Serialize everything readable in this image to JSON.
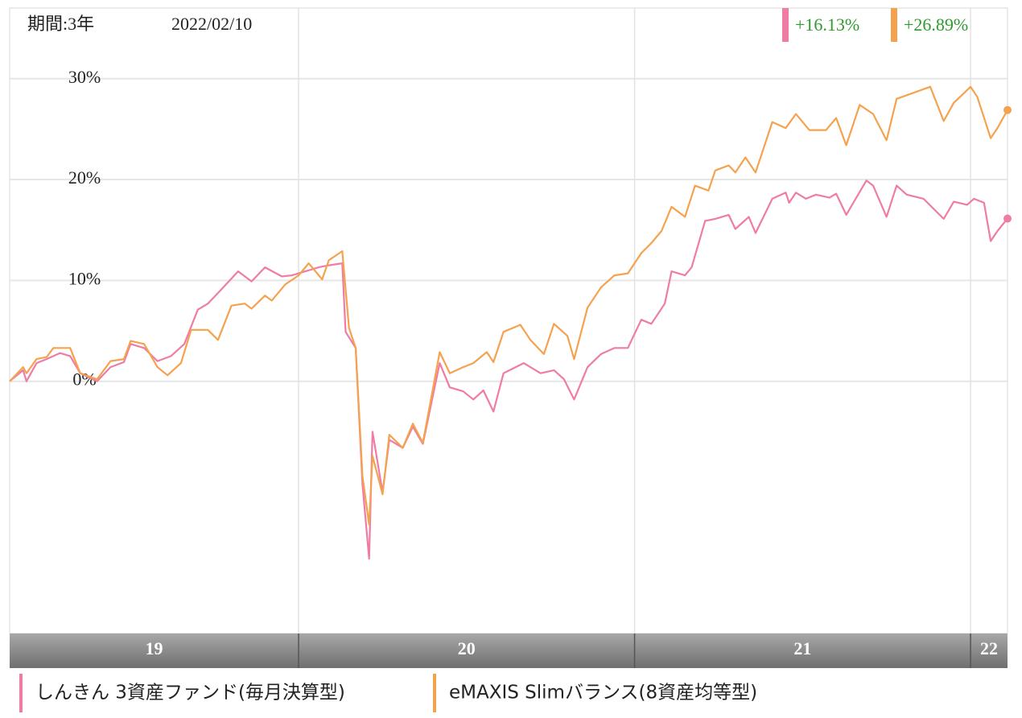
{
  "chart_data": {
    "type": "line",
    "period_label": "期間:3年",
    "date": "2022/02/10",
    "xlim": [
      2019.14,
      2022.11
    ],
    "xticks": [
      {
        "value": 2019,
        "label": "19"
      },
      {
        "value": 2020,
        "label": "20"
      },
      {
        "value": 2021,
        "label": "21"
      },
      {
        "value": 2022,
        "label": "22"
      }
    ],
    "ylim": [
      -25,
      37
    ],
    "yticks": [
      {
        "value": 0,
        "label": "0%"
      },
      {
        "value": 10,
        "label": "10%"
      },
      {
        "value": 20,
        "label": "20%"
      },
      {
        "value": 30,
        "label": "30%"
      }
    ],
    "grid": true,
    "series": [
      {
        "name": "しんきん 3資産ファンド(毎月決算型)",
        "color": "#ef7ca5",
        "end_label": "+16.13%",
        "x": [
          2019.14,
          2019.18,
          2019.19,
          2019.22,
          2019.25,
          2019.29,
          2019.32,
          2019.35,
          2019.4,
          2019.44,
          2019.48,
          2019.5,
          2019.54,
          2019.58,
          2019.62,
          2019.66,
          2019.7,
          2019.73,
          2019.77,
          2019.82,
          2019.86,
          2019.9,
          2019.95,
          2019.98,
          2020.02,
          2020.06,
          2020.09,
          2020.13,
          2020.14,
          2020.17,
          2020.19,
          2020.21,
          2020.22,
          2020.25,
          2020.27,
          2020.31,
          2020.34,
          2020.37,
          2020.42,
          2020.45,
          2020.49,
          2020.52,
          2020.55,
          2020.58,
          2020.61,
          2020.67,
          2020.72,
          2020.76,
          2020.79,
          2020.82,
          2020.86,
          2020.9,
          2020.94,
          2020.98,
          2021.02,
          2021.05,
          2021.09,
          2021.11,
          2021.15,
          2021.17,
          2021.21,
          2021.24,
          2021.28,
          2021.3,
          2021.34,
          2021.36,
          2021.41,
          2021.45,
          2021.46,
          2021.48,
          2021.51,
          2021.54,
          2021.58,
          2021.6,
          2021.63,
          2021.69,
          2021.71,
          2021.75,
          2021.78,
          2021.81,
          2021.86,
          2021.92,
          2021.95,
          2021.99,
          2022.01,
          2022.04,
          2022.06,
          2022.08,
          2022.11
        ],
        "values": [
          0,
          1.1,
          0,
          1.8,
          2.2,
          2.8,
          2.5,
          0.8,
          0,
          1.4,
          1.9,
          3.7,
          3.3,
          2.0,
          2.5,
          3.7,
          7.1,
          7.7,
          9.1,
          10.9,
          9.9,
          11.3,
          10.4,
          10.5,
          10.9,
          11.3,
          11.5,
          11.7,
          4.9,
          3.3,
          -10.2,
          -17.6,
          -5.0,
          -11.0,
          -5.8,
          -6.6,
          -4.5,
          -6.2,
          1.8,
          -0.6,
          -1.0,
          -1.8,
          -0.9,
          -3.0,
          0.8,
          1.8,
          0.8,
          1.1,
          0.2,
          -1.8,
          1.4,
          2.7,
          3.3,
          3.3,
          6.1,
          5.7,
          7.7,
          10.9,
          10.5,
          11.3,
          15.9,
          16.1,
          16.5,
          15.1,
          16.3,
          14.7,
          18.1,
          18.7,
          17.7,
          18.7,
          18.1,
          18.5,
          18.2,
          18.6,
          16.5,
          19.9,
          19.4,
          16.3,
          19.4,
          18.5,
          18.1,
          16.1,
          17.8,
          17.5,
          18.1,
          17.7,
          13.9,
          14.9,
          16.13
        ]
      },
      {
        "name": "eMAXIS Slimバランス(8資産均等型)",
        "color": "#f5a24f",
        "end_label": "+26.89%",
        "x": [
          2019.14,
          2019.18,
          2019.19,
          2019.22,
          2019.25,
          2019.27,
          2019.32,
          2019.35,
          2019.4,
          2019.44,
          2019.48,
          2019.5,
          2019.54,
          2019.58,
          2019.61,
          2019.65,
          2019.68,
          2019.73,
          2019.76,
          2019.8,
          2019.84,
          2019.86,
          2019.9,
          2019.92,
          2019.96,
          2020.0,
          2020.03,
          2020.07,
          2020.09,
          2020.13,
          2020.15,
          2020.17,
          2020.19,
          2020.21,
          2020.22,
          2020.25,
          2020.27,
          2020.31,
          2020.34,
          2020.37,
          2020.42,
          2020.45,
          2020.49,
          2020.52,
          2020.56,
          2020.58,
          2020.61,
          2020.66,
          2020.69,
          2020.73,
          2020.76,
          2020.8,
          2020.82,
          2020.86,
          2020.9,
          2020.94,
          2020.98,
          2021.02,
          2021.05,
          2021.08,
          2021.11,
          2021.15,
          2021.18,
          2021.22,
          2021.24,
          2021.28,
          2021.3,
          2021.33,
          2021.36,
          2021.41,
          2021.45,
          2021.48,
          2021.52,
          2021.57,
          2021.6,
          2021.63,
          2021.67,
          2021.71,
          2021.75,
          2021.78,
          2021.83,
          2021.88,
          2021.92,
          2021.95,
          2022.0,
          2022.02,
          2022.06,
          2022.08,
          2022.11
        ],
        "values": [
          0,
          1.4,
          0.8,
          2.2,
          2.4,
          3.3,
          3.3,
          0.8,
          0.2,
          2.0,
          2.2,
          4.0,
          3.7,
          1.4,
          0.6,
          1.8,
          5.1,
          5.1,
          4.1,
          7.5,
          7.7,
          7.2,
          8.5,
          8.0,
          9.6,
          10.5,
          11.7,
          10.1,
          12.0,
          12.9,
          5.3,
          3.3,
          -9.4,
          -14.2,
          -7.4,
          -11.2,
          -5.3,
          -6.6,
          -4.2,
          -6.1,
          2.9,
          0.8,
          1.4,
          1.8,
          2.9,
          1.9,
          4.9,
          5.6,
          4.1,
          2.7,
          5.7,
          4.5,
          2.2,
          7.3,
          9.3,
          10.5,
          10.7,
          12.7,
          13.7,
          14.9,
          17.3,
          16.3,
          19.4,
          18.9,
          20.9,
          21.4,
          20.7,
          22.2,
          20.7,
          25.7,
          25.1,
          26.5,
          24.9,
          24.9,
          26.1,
          23.4,
          27.4,
          26.5,
          23.9,
          28.0,
          28.6,
          29.2,
          25.8,
          27.6,
          29.2,
          28.2,
          24.1,
          25.1,
          26.89
        ]
      }
    ]
  }
}
